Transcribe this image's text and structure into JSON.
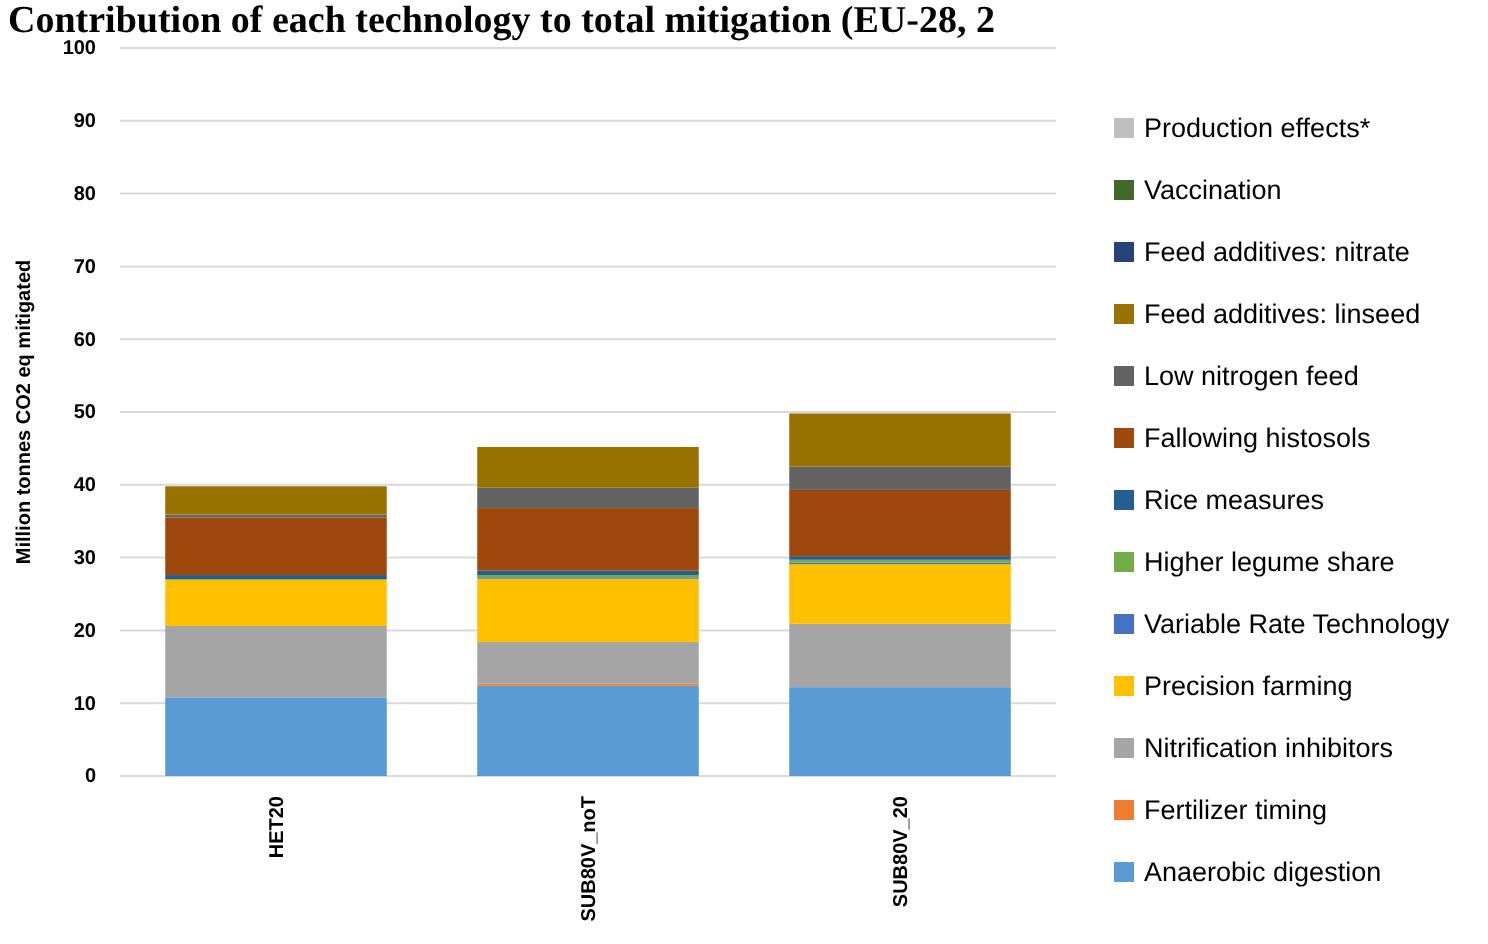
{
  "chart_data": {
    "type": "bar",
    "title": "Contribution of each technology to total mitigation (EU-28, 2",
    "ylabel": "Million tonnes CO2 eq mitigated",
    "categories": [
      "HET20",
      "SUB80V_noT",
      "SUB80V_20"
    ],
    "stacked": true,
    "ylim": [
      0,
      100
    ],
    "yticks": [
      0,
      10,
      20,
      30,
      40,
      50,
      60,
      70,
      80,
      90,
      100
    ],
    "grid": "y",
    "legend": "right",
    "series": [
      {
        "name": "Anaerobic digestion",
        "color": "#5b9bd5",
        "values": [
          10.8,
          12.4,
          12.2
        ]
      },
      {
        "name": "Fertilizer timing",
        "color": "#ed7d31",
        "values": [
          0,
          0.3,
          0
        ]
      },
      {
        "name": "Nitrification inhibitors",
        "color": "#a5a5a5",
        "values": [
          9.8,
          5.7,
          8.7
        ]
      },
      {
        "name": "Precision farming",
        "color": "#ffc000",
        "values": [
          6.4,
          8.7,
          8.2
        ]
      },
      {
        "name": "Variable Rate Technology",
        "color": "#4472c4",
        "values": [
          0,
          0.2,
          0.2
        ]
      },
      {
        "name": "Higher legume share",
        "color": "#70ad47",
        "values": [
          0,
          0.3,
          0.4
        ]
      },
      {
        "name": "Rice measures",
        "color": "#255e91",
        "values": [
          0.6,
          0.6,
          0.5
        ]
      },
      {
        "name": "Fallowing histosols",
        "color": "#9e480e",
        "values": [
          7.9,
          8.6,
          9.1
        ]
      },
      {
        "name": "Low nitrogen feed",
        "color": "#636363",
        "values": [
          0.4,
          2.8,
          3.2
        ]
      },
      {
        "name": "Feed additives: linseed",
        "color": "#997300",
        "values": [
          3.9,
          5.6,
          7.3
        ]
      },
      {
        "name": "Feed additives: nitrate",
        "color": "#264478",
        "values": [
          0,
          0,
          0
        ]
      },
      {
        "name": "Vaccination",
        "color": "#43682b",
        "values": [
          0,
          0,
          0
        ]
      },
      {
        "name": "Production effects*",
        "color": "#bfbfbf",
        "values": [
          0,
          0,
          0
        ]
      }
    ]
  }
}
